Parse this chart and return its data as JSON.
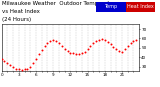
{
  "bg_color": "#ffffff",
  "plot_bg_color": "#ffffff",
  "grid_color": "#aaaaaa",
  "temp_color": "#ff0000",
  "legend_temp_color": "#0000cc",
  "legend_heat_color": "#cc0000",
  "legend_temp_label": "Temp",
  "legend_heat_label": "Heat Index",
  "title_color": "#000000",
  "axis_color": "#000000",
  "tick_color": "#000000",
  "ylim": [
    25,
    75
  ],
  "xlim": [
    0,
    24
  ],
  "yticks": [
    30,
    40,
    50,
    60,
    70
  ],
  "xticks": [
    0,
    1,
    2,
    3,
    4,
    5,
    6,
    7,
    8,
    9,
    10,
    11,
    12,
    13,
    14,
    15,
    16,
    17,
    18,
    19,
    20,
    21,
    22,
    23
  ],
  "x": [
    0,
    0.5,
    1,
    1.5,
    2,
    2.5,
    3,
    3.5,
    4,
    4.5,
    5,
    5.5,
    6,
    6.5,
    7,
    7.5,
    8,
    8.5,
    9,
    9.5,
    10,
    10.5,
    11,
    11.5,
    12,
    12.5,
    13,
    13.5,
    14,
    14.5,
    15,
    15.5,
    16,
    16.5,
    17,
    17.5,
    18,
    18.5,
    19,
    19.5,
    20,
    20.5,
    21,
    21.5,
    22,
    22.5,
    23,
    23.5
  ],
  "temp": [
    38,
    36,
    34,
    32,
    30,
    28,
    27,
    26,
    27,
    28,
    30,
    34,
    38,
    43,
    48,
    52,
    55,
    57,
    58,
    57,
    55,
    52,
    49,
    47,
    45,
    44,
    43,
    43,
    44,
    46,
    49,
    52,
    55,
    57,
    58,
    59,
    58,
    56,
    54,
    51,
    49,
    47,
    46,
    49,
    52,
    55,
    57,
    58
  ],
  "marker_size": 2.0,
  "title_fontsize": 4.0,
  "tick_fontsize": 3.0,
  "ytick_fontsize": 3.0
}
